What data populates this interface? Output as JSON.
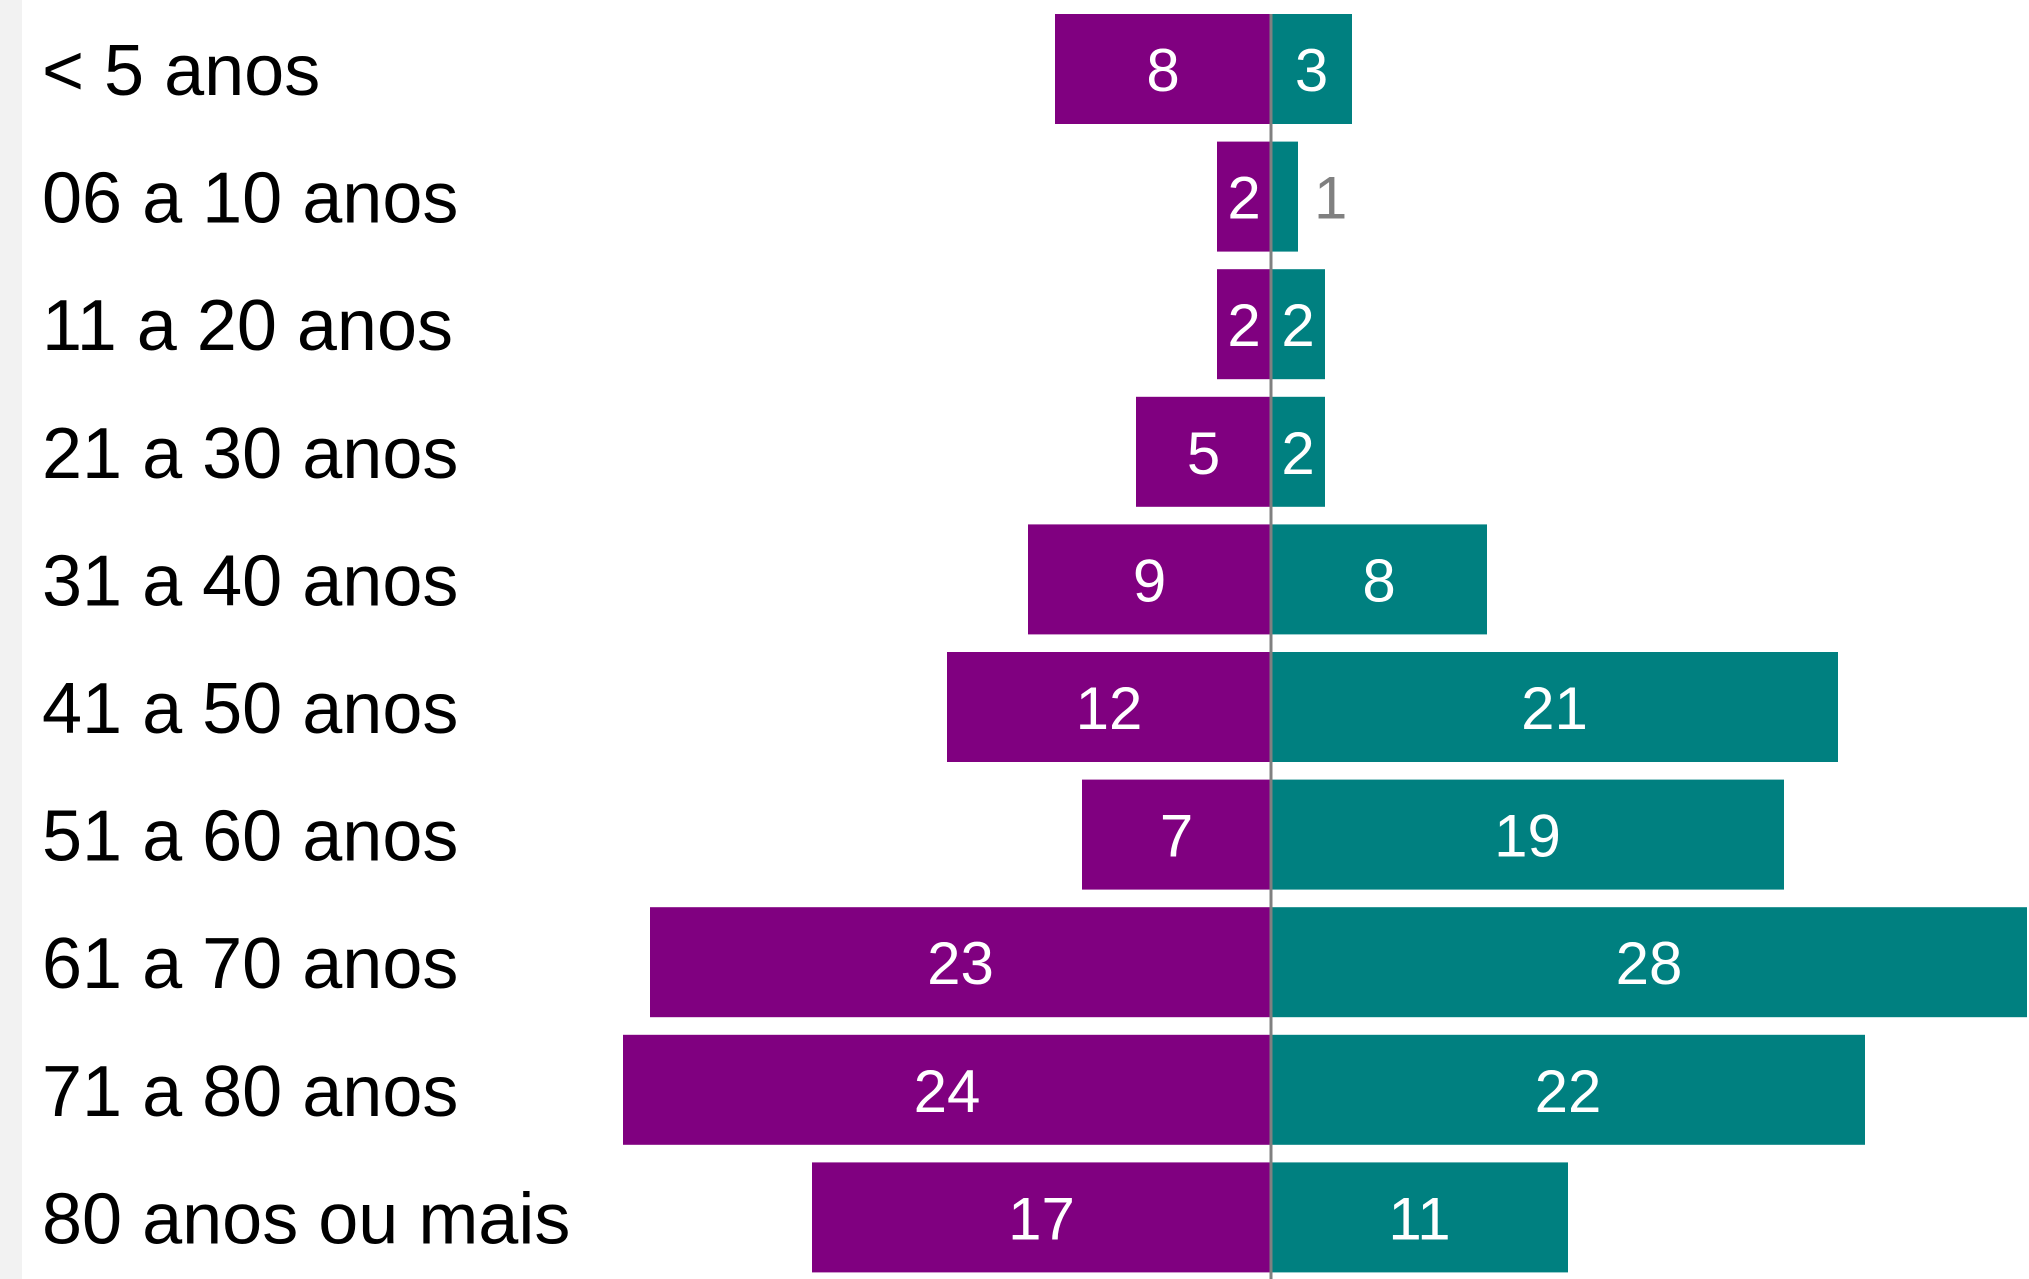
{
  "chart_data": {
    "type": "bar",
    "orientation": "horizontal-diverging",
    "categories": [
      "< 5 anos",
      "06 a 10 anos",
      "11 a 20 anos",
      "21 a 30 anos",
      "31 a 40 anos",
      "41 a 50 anos",
      "51 a 60 anos",
      "61 a 70 anos",
      "71 a 80 anos",
      "80 anos ou mais"
    ],
    "series": [
      {
        "side": "left",
        "color": "#800080",
        "values": [
          8,
          2,
          2,
          5,
          9,
          12,
          7,
          23,
          24,
          17
        ]
      },
      {
        "side": "right",
        "color": "#008080",
        "values": [
          3,
          1,
          2,
          2,
          8,
          21,
          19,
          28,
          22,
          11
        ]
      }
    ],
    "axis_color": "#808080",
    "legend": "none",
    "grid": false
  }
}
